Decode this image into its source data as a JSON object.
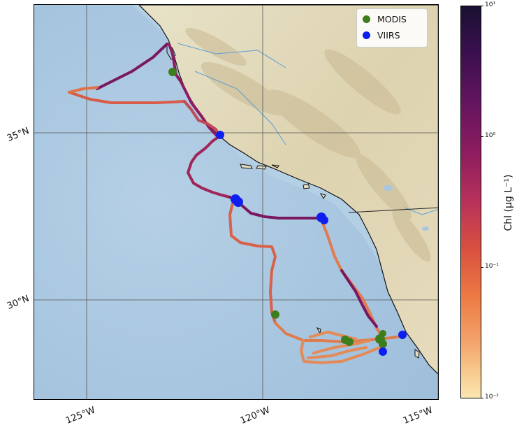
{
  "map": {
    "lat_labels": [
      "35°N",
      "30°N"
    ],
    "lon_labels": [
      "125°W",
      "120°W",
      "115°W"
    ],
    "colors": {
      "ocean": "#a9c6df",
      "land": "#e3dcc0",
      "mountain": "#cbbd98",
      "coast": "#111111",
      "grid": "#555555"
    }
  },
  "legend": {
    "items": [
      {
        "label": "MODIS",
        "color": "#3e7d1e"
      },
      {
        "label": "VIIRS",
        "color": "#0d1ff0"
      }
    ]
  },
  "colorbar": {
    "title": "Chl (μg L⁻¹)",
    "ticks": [
      "10¹",
      "10⁰",
      "10⁻¹",
      "10⁻²"
    ],
    "scale": "log",
    "range": [
      0.01,
      10
    ]
  }
}
